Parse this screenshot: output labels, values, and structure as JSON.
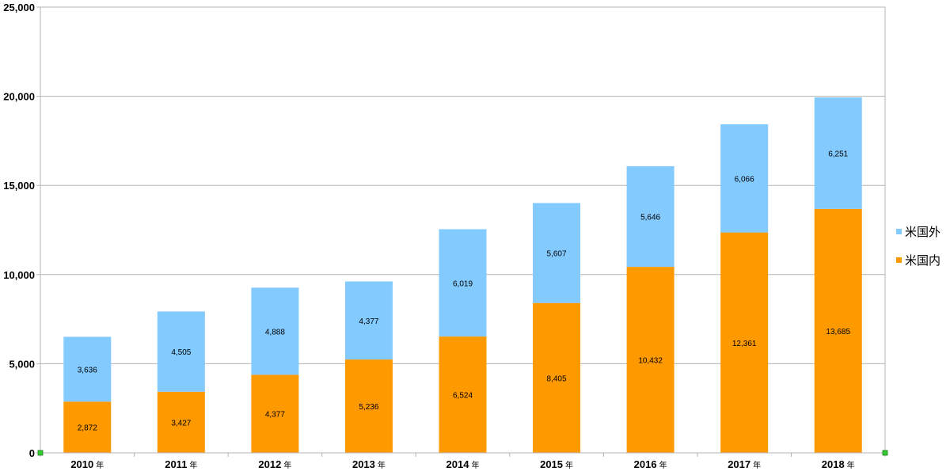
{
  "chart_data": {
    "type": "bar",
    "stacked": true,
    "categories": [
      {
        "year": "2010",
        "unit": "年"
      },
      {
        "year": "2011",
        "unit": "年"
      },
      {
        "year": "2012",
        "unit": "年"
      },
      {
        "year": "2013",
        "unit": "年"
      },
      {
        "year": "2014",
        "unit": "年"
      },
      {
        "year": "2015",
        "unit": "年"
      },
      {
        "year": "2016",
        "unit": "年"
      },
      {
        "year": "2017",
        "unit": "年"
      },
      {
        "year": "2018",
        "unit": "年"
      }
    ],
    "series": [
      {
        "name": "米国内",
        "color": "#ff9900",
        "values": [
          2872,
          3427,
          4377,
          5236,
          6524,
          8405,
          10432,
          12361,
          13685
        ],
        "labels": [
          "2,872",
          "3,427",
          "4,377",
          "5,236",
          "6,524",
          "8,405",
          "10,432",
          "12,361",
          "13,685"
        ]
      },
      {
        "name": "米国外",
        "color": "#83caff",
        "values": [
          3636,
          4505,
          4888,
          4377,
          6019,
          5607,
          5646,
          6066,
          6251
        ],
        "labels": [
          "3,636",
          "4,505",
          "4,888",
          "4,377",
          "6,019",
          "5,607",
          "5,646",
          "6,066",
          "6,251"
        ]
      }
    ],
    "yticks": [
      {
        "value": 0,
        "label": "0"
      },
      {
        "value": 5000,
        "label": "5,000"
      },
      {
        "value": 10000,
        "label": "10,000"
      },
      {
        "value": 15000,
        "label": "15,000"
      },
      {
        "value": 20000,
        "label": "20,000"
      },
      {
        "value": 25000,
        "label": "25,000"
      }
    ],
    "ylim": [
      0,
      25000
    ],
    "title": "",
    "xlabel": "",
    "ylabel": "",
    "grid": true,
    "legend": {
      "placement": "right",
      "order": [
        "米国外",
        "米国内"
      ]
    },
    "grid_color": "#b3b3b3",
    "axis_color": "#b3b3b3"
  }
}
